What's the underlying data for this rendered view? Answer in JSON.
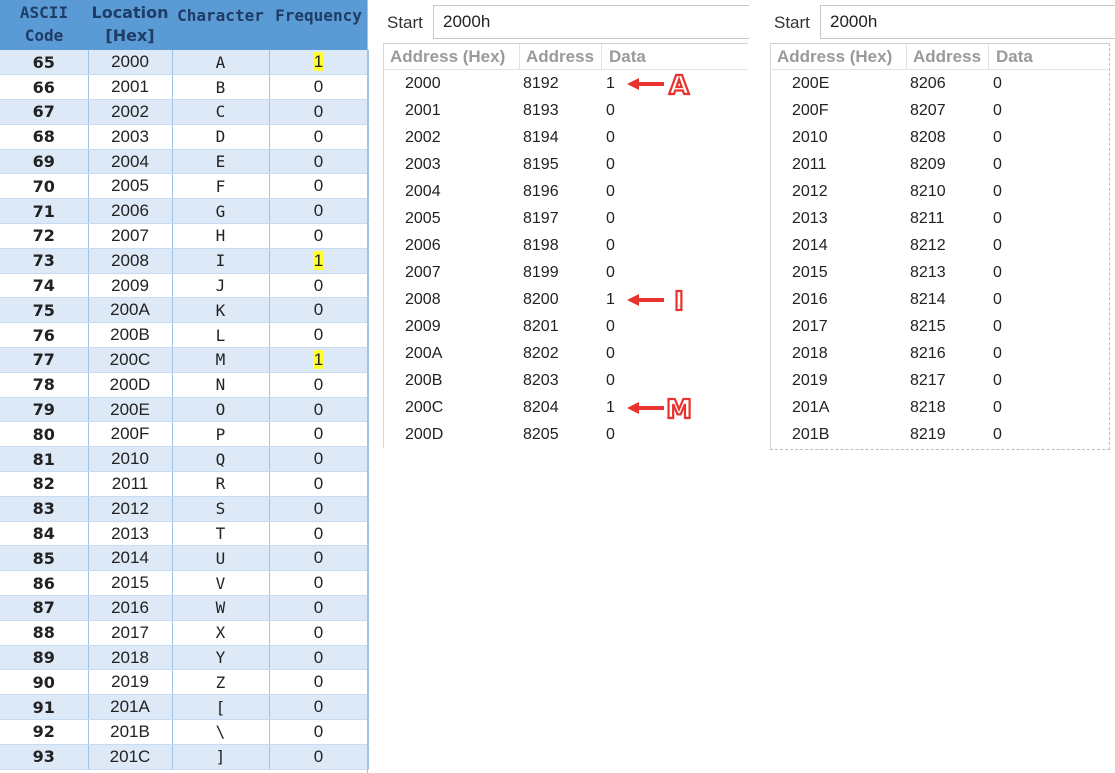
{
  "frequency_table": {
    "headers": {
      "ascii_line1": "ASCII",
      "ascii_line2": "Code",
      "location_line1": "Location",
      "location_line2": "[Hex]",
      "character": "Character",
      "frequency": "Frequency"
    },
    "rows": [
      {
        "ascii": "65",
        "location": "2000",
        "character": "A",
        "frequency": "1",
        "highlight": true
      },
      {
        "ascii": "66",
        "location": "2001",
        "character": "B",
        "frequency": "0"
      },
      {
        "ascii": "67",
        "location": "2002",
        "character": "C",
        "frequency": "0"
      },
      {
        "ascii": "68",
        "location": "2003",
        "character": "D",
        "frequency": "0"
      },
      {
        "ascii": "69",
        "location": "2004",
        "character": "E",
        "frequency": "0"
      },
      {
        "ascii": "70",
        "location": "2005",
        "character": "F",
        "frequency": "0"
      },
      {
        "ascii": "71",
        "location": "2006",
        "character": "G",
        "frequency": "0"
      },
      {
        "ascii": "72",
        "location": "2007",
        "character": "H",
        "frequency": "0"
      },
      {
        "ascii": "73",
        "location": "2008",
        "character": "I",
        "frequency": "1",
        "highlight": true
      },
      {
        "ascii": "74",
        "location": "2009",
        "character": "J",
        "frequency": "0"
      },
      {
        "ascii": "75",
        "location": "200A",
        "character": "K",
        "frequency": "0"
      },
      {
        "ascii": "76",
        "location": "200B",
        "character": "L",
        "frequency": "0"
      },
      {
        "ascii": "77",
        "location": "200C",
        "character": "M",
        "frequency": "1",
        "highlight": true
      },
      {
        "ascii": "78",
        "location": "200D",
        "character": "N",
        "frequency": "0"
      },
      {
        "ascii": "79",
        "location": "200E",
        "character": "O",
        "frequency": "0"
      },
      {
        "ascii": "80",
        "location": "200F",
        "character": "P",
        "frequency": "0"
      },
      {
        "ascii": "81",
        "location": "2010",
        "character": "Q",
        "frequency": "0"
      },
      {
        "ascii": "82",
        "location": "2011",
        "character": "R",
        "frequency": "0"
      },
      {
        "ascii": "83",
        "location": "2012",
        "character": "S",
        "frequency": "0"
      },
      {
        "ascii": "84",
        "location": "2013",
        "character": "T",
        "frequency": "0"
      },
      {
        "ascii": "85",
        "location": "2014",
        "character": "U",
        "frequency": "0"
      },
      {
        "ascii": "86",
        "location": "2015",
        "character": "V",
        "frequency": "0"
      },
      {
        "ascii": "87",
        "location": "2016",
        "character": "W",
        "frequency": "0"
      },
      {
        "ascii": "88",
        "location": "2017",
        "character": "X",
        "frequency": "0"
      },
      {
        "ascii": "89",
        "location": "2018",
        "character": "Y",
        "frequency": "0"
      },
      {
        "ascii": "90",
        "location": "2019",
        "character": "Z",
        "frequency": "0"
      },
      {
        "ascii": "91",
        "location": "201A",
        "character": "[",
        "frequency": "0"
      },
      {
        "ascii": "92",
        "location": "201B",
        "character": "\\",
        "frequency": "0"
      },
      {
        "ascii": "93",
        "location": "201C",
        "character": "]",
        "frequency": "0"
      }
    ],
    "colors": {
      "header_bg": "#5b9bd5",
      "header_text": "#1f3c66",
      "stripe": "#dde9f6",
      "highlight": "#ffff33"
    }
  },
  "memory_panels": [
    {
      "start_label": "Start",
      "start_value": "2000h",
      "columns": [
        "Address (Hex)",
        "Address",
        "Data"
      ],
      "rows": [
        {
          "hex": "2000",
          "dec": "8192",
          "data": "1",
          "annotation": "A"
        },
        {
          "hex": "2001",
          "dec": "8193",
          "data": "0"
        },
        {
          "hex": "2002",
          "dec": "8194",
          "data": "0"
        },
        {
          "hex": "2003",
          "dec": "8195",
          "data": "0"
        },
        {
          "hex": "2004",
          "dec": "8196",
          "data": "0"
        },
        {
          "hex": "2005",
          "dec": "8197",
          "data": "0"
        },
        {
          "hex": "2006",
          "dec": "8198",
          "data": "0"
        },
        {
          "hex": "2007",
          "dec": "8199",
          "data": "0"
        },
        {
          "hex": "2008",
          "dec": "8200",
          "data": "1",
          "annotation": "I"
        },
        {
          "hex": "2009",
          "dec": "8201",
          "data": "0"
        },
        {
          "hex": "200A",
          "dec": "8202",
          "data": "0"
        },
        {
          "hex": "200B",
          "dec": "8203",
          "data": "0"
        },
        {
          "hex": "200C",
          "dec": "8204",
          "data": "1",
          "annotation": "M"
        },
        {
          "hex": "200D",
          "dec": "8205",
          "data": "0"
        }
      ]
    },
    {
      "start_label": "Start",
      "start_value": "2000h",
      "columns": [
        "Address (Hex)",
        "Address",
        "Data"
      ],
      "rows": [
        {
          "hex": "200E",
          "dec": "8206",
          "data": "0"
        },
        {
          "hex": "200F",
          "dec": "8207",
          "data": "0"
        },
        {
          "hex": "2010",
          "dec": "8208",
          "data": "0"
        },
        {
          "hex": "2011",
          "dec": "8209",
          "data": "0"
        },
        {
          "hex": "2012",
          "dec": "8210",
          "data": "0"
        },
        {
          "hex": "2013",
          "dec": "8211",
          "data": "0"
        },
        {
          "hex": "2014",
          "dec": "8212",
          "data": "0"
        },
        {
          "hex": "2015",
          "dec": "8213",
          "data": "0"
        },
        {
          "hex": "2016",
          "dec": "8214",
          "data": "0"
        },
        {
          "hex": "2017",
          "dec": "8215",
          "data": "0"
        },
        {
          "hex": "2018",
          "dec": "8216",
          "data": "0"
        },
        {
          "hex": "2019",
          "dec": "8217",
          "data": "0"
        },
        {
          "hex": "201A",
          "dec": "8218",
          "data": "0"
        },
        {
          "hex": "201B",
          "dec": "8219",
          "data": "0"
        }
      ]
    }
  ],
  "annotation_color": "#e8332e"
}
